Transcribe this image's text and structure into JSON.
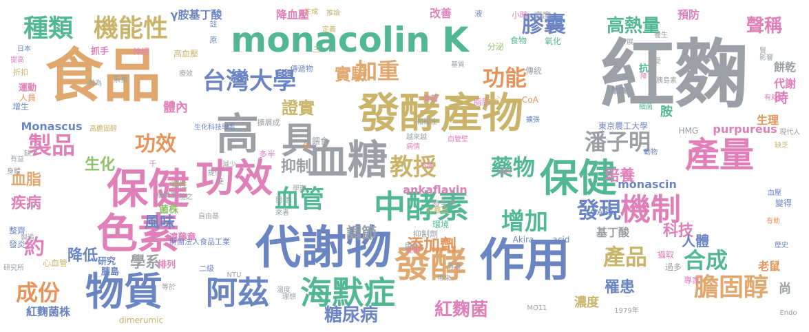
{
  "palette": [
    "#e0a86e",
    "#9aa0a6",
    "#6b84c2",
    "#e080b8",
    "#52b894",
    "#e7945a",
    "#c9b46a",
    "#8fc26a"
  ],
  "words": [
    {
      "text": "紅麴",
      "c": "#9aa0a6"
    },
    {
      "text": "食品",
      "c": "#e0a86e"
    },
    {
      "text": "monacolin K",
      "c": "#52b894"
    },
    {
      "text": "代謝物",
      "c": "#6b84c2"
    },
    {
      "text": "發酵產物",
      "c": "#c9b46a"
    },
    {
      "text": "保健",
      "c": "#e080b8"
    },
    {
      "text": "功效",
      "c": "#e080b8"
    },
    {
      "text": "高",
      "c": "#9aa0a6"
    },
    {
      "text": "具",
      "c": "#9aa0a6"
    },
    {
      "text": "血糖",
      "c": "#9aa0a6"
    },
    {
      "text": "作用",
      "c": "#6b84c2"
    },
    {
      "text": "色素",
      "c": "#e080b8"
    },
    {
      "text": "物質",
      "c": "#6b84c2"
    },
    {
      "text": "海默症",
      "c": "#52b894"
    },
    {
      "text": "阿茲",
      "c": "#6b84c2"
    },
    {
      "text": "發酵",
      "c": "#e0a86e"
    },
    {
      "text": "保健",
      "c": "#52b894"
    },
    {
      "text": "產量",
      "c": "#e080b8"
    },
    {
      "text": "中酵素",
      "c": "#52b894"
    },
    {
      "text": "機制",
      "c": "#e080b8"
    },
    {
      "text": "種類",
      "c": "#52b894"
    },
    {
      "text": "機能性",
      "c": "#c9b46a"
    },
    {
      "text": "台灣大學",
      "c": "#6b84c2"
    },
    {
      "text": "加重",
      "c": "#e0a86e"
    },
    {
      "text": "功能",
      "c": "#e7945a"
    },
    {
      "text": "膠囊",
      "c": "#6b84c2"
    },
    {
      "text": "高熱量",
      "c": "#52b894"
    },
    {
      "text": "聲稱",
      "c": "#e080b8"
    },
    {
      "text": "教授",
      "c": "#c9b46a"
    },
    {
      "text": "藥物",
      "c": "#52b894"
    },
    {
      "text": "潘子明",
      "c": "#9aa0a6"
    },
    {
      "text": "血管",
      "c": "#52b894"
    },
    {
      "text": "增加",
      "c": "#52b894"
    },
    {
      "text": "發現",
      "c": "#6b84c2"
    },
    {
      "text": "製品",
      "c": "#e080b8"
    },
    {
      "text": "功效",
      "c": "#e7945a"
    },
    {
      "text": "膽固醇",
      "c": "#e0a86e"
    },
    {
      "text": "產品",
      "c": "#c9b46a"
    },
    {
      "text": "合成",
      "c": "#52b894"
    },
    {
      "text": "成份",
      "c": "#e7945a"
    },
    {
      "text": "約",
      "c": "#e080b8"
    },
    {
      "text": "糖尿病",
      "c": "#6b84c2"
    },
    {
      "text": "紅麴菌",
      "c": "#e080b8"
    },
    {
      "text": "證實",
      "c": "#c9b46a"
    },
    {
      "text": "實驗",
      "c": "#e0a86e"
    },
    {
      "text": "培養",
      "c": "#e080b8"
    },
    {
      "text": "添加劑",
      "c": "#e7945a"
    },
    {
      "text": "調節",
      "c": "#9aa0a6"
    },
    {
      "text": "抑制",
      "c": "#9aa0a6"
    },
    {
      "text": "生化",
      "c": "#8fc26a"
    },
    {
      "text": "血脂",
      "c": "#e0a86e"
    },
    {
      "text": "疾病",
      "c": "#e080b8"
    },
    {
      "text": "風味",
      "c": "#6b84c2"
    },
    {
      "text": "降低",
      "c": "#6b84c2"
    },
    {
      "text": "學系",
      "c": "#9aa0a6"
    },
    {
      "text": "科技",
      "c": "#e080b8"
    },
    {
      "text": "人體",
      "c": "#6b84c2"
    },
    {
      "text": "罹患",
      "c": "#6b84c2"
    },
    {
      "text": "濃度",
      "c": "#c9b46a"
    },
    {
      "text": "monascin",
      "c": "#6b84c2"
    },
    {
      "text": "ankaflavin",
      "c": "#e080b8"
    },
    {
      "text": "purpureus",
      "c": "#e080b8"
    },
    {
      "text": "Monascus",
      "c": "#6b84c2"
    },
    {
      "text": "γ胺基丁酸",
      "c": "#6b84c2"
    },
    {
      "text": "降血壓",
      "c": "#e080b8"
    },
    {
      "text": "改善",
      "c": "#e080b8"
    },
    {
      "text": "預防",
      "c": "#e080b8"
    },
    {
      "text": "時",
      "c": "#e080b8"
    },
    {
      "text": "代謝",
      "c": "#e080b8"
    },
    {
      "text": "生理",
      "c": "#e7945a"
    },
    {
      "text": "餅乾",
      "c": "#9aa0a6"
    },
    {
      "text": "抗",
      "c": "#52b894"
    },
    {
      "text": "胺",
      "c": "#52b894"
    },
    {
      "text": "體內",
      "c": "#e080b8"
    },
    {
      "text": "基丁酸",
      "c": "#9aa0a6"
    },
    {
      "text": "菌株",
      "c": "#8fc26a"
    },
    {
      "text": "尚",
      "c": "#9aa0a6"
    },
    {
      "text": "老鼠",
      "c": "#e7945a"
    },
    {
      "text": "紅麴菌株",
      "c": "#6b84c2"
    },
    {
      "text": "東京農工大學",
      "c": "#6b84c2"
    },
    {
      "text": "GABA",
      "c": "#6b84c2"
    },
    {
      "text": "Akira",
      "c": "#6b84c2"
    },
    {
      "text": "acid",
      "c": "#6b84c2"
    },
    {
      "text": "HMG",
      "c": "#9aa0a6"
    },
    {
      "text": "CoA",
      "c": "#e7945a"
    },
    {
      "text": "dimerumic",
      "c": "#c9b46a"
    },
    {
      "text": "Endo",
      "c": "#9aa0a6"
    },
    {
      "text": "1979年",
      "c": "#9aa0a6"
    },
    {
      "text": "研究",
      "c": "#6b84c2"
    },
    {
      "text": "胰島",
      "c": "#6b84c2"
    },
    {
      "text": "排列",
      "c": "#e080b8"
    },
    {
      "text": "遠藤章",
      "c": "#e080b8"
    },
    {
      "text": "自由基",
      "c": "#9aa0a6"
    },
    {
      "text": "心血管",
      "c": "#c9b46a"
    },
    {
      "text": "弾性",
      "c": "#8fc26a"
    },
    {
      "text": "傳統",
      "c": "#9aa0a6"
    },
    {
      "text": "日本",
      "c": "#6b84c2"
    },
    {
      "text": "抓手",
      "c": "#e080b8"
    },
    {
      "text": "神經",
      "c": "#e080b8"
    },
    {
      "text": "高血壓",
      "c": "#c9b46a"
    },
    {
      "text": "運動",
      "c": "#e080b8"
    },
    {
      "text": "人員",
      "c": "#e7945a"
    },
    {
      "text": "增生",
      "c": "#6b84c2"
    },
    {
      "text": "整齊",
      "c": "#6b84c2"
    },
    {
      "text": "發炎",
      "c": "#6b84c2"
    },
    {
      "text": "缺少",
      "c": "#9aa0a6"
    },
    {
      "text": "多半",
      "c": "#e080b8"
    },
    {
      "text": "餵食",
      "c": "#9aa0a6"
    },
    {
      "text": "脂肪",
      "c": "#e080b8"
    },
    {
      "text": "知心",
      "c": "#c9b46a"
    },
    {
      "text": "食物",
      "c": "#52b894"
    },
    {
      "text": "氧化",
      "c": "#52b894"
    },
    {
      "text": "分泌",
      "c": "#8fc26a"
    },
    {
      "text": "高度",
      "c": "#9aa0a6"
    },
    {
      "text": "小時",
      "c": "#e080b8"
    },
    {
      "text": "攝取",
      "c": "#e080b8"
    },
    {
      "text": "歷史",
      "c": "#6b84c2"
    },
    {
      "text": "有助",
      "c": "#e7945a"
    },
    {
      "text": "血壓",
      "c": "#6b84c2"
    },
    {
      "text": "動物",
      "c": "#6b84c2"
    },
    {
      "text": "過多",
      "c": "#9aa0a6"
    },
    {
      "text": "專家",
      "c": "#e080b8"
    },
    {
      "text": "變得",
      "c": "#6b84c2"
    },
    {
      "text": "現代人",
      "c": "#9aa0a6"
    },
    {
      "text": "缺乏",
      "c": "#c9b46a"
    },
    {
      "text": "擴張",
      "c": "#6b84c2"
    },
    {
      "text": "消除",
      "c": "#e080b8"
    },
    {
      "text": "血管壁",
      "c": "#e080b8"
    },
    {
      "text": "下降",
      "c": "#e080b8"
    },
    {
      "text": "病情",
      "c": "#e080b8"
    },
    {
      "text": "越來越",
      "c": "#9aa0a6"
    },
    {
      "text": "相關性",
      "c": "#9aa0a6"
    },
    {
      "text": "發生率",
      "c": "#9aa0a6"
    },
    {
      "text": "分離出",
      "c": "#c9b46a"
    },
    {
      "text": "環境",
      "c": "#52b894"
    },
    {
      "text": "抑制劑",
      "c": "#9aa0a6"
    },
    {
      "text": "顯示",
      "c": "#9aa0a6"
    },
    {
      "text": "促使",
      "c": "#e080b8"
    },
    {
      "text": "眞菌",
      "c": "#e080b8"
    },
    {
      "text": "擴展成",
      "c": "#9aa0a6"
    },
    {
      "text": "素量",
      "c": "#9aa0a6"
    },
    {
      "text": "物像",
      "c": "#6b84c2"
    },
    {
      "text": "降",
      "c": "#e080b8"
    },
    {
      "text": "細菌",
      "c": "#52b894"
    },
    {
      "text": "有助於",
      "c": "#e080b8"
    },
    {
      "text": "高膽固醇",
      "c": "#c9b46a"
    },
    {
      "text": "傳遞物",
      "c": "#6b84c2"
    },
    {
      "text": "生化科技學系",
      "c": "#6b84c2"
    },
    {
      "text": "財團法人食品工業",
      "c": "#6b84c2"
    },
    {
      "text": "二級",
      "c": "#6b84c2"
    },
    {
      "text": "年",
      "c": "#e7945a"
    },
    {
      "text": "千",
      "c": "#e080b8"
    },
    {
      "text": "註",
      "c": "#6b84c2"
    },
    {
      "text": "原",
      "c": "#6b84c2"
    },
    {
      "text": "液",
      "c": "#6b84c2"
    },
    {
      "text": "三",
      "c": "#c9b46a"
    },
    {
      "text": "生成",
      "c": "#c9b46a"
    },
    {
      "text": "推論",
      "c": "#c9b46a"
    },
    {
      "text": "定義",
      "c": "#c9b46a"
    },
    {
      "text": "折扣",
      "c": "#c9b46a"
    },
    {
      "text": "提高",
      "c": "#e080b8"
    },
    {
      "text": "有益",
      "c": "#9aa0a6"
    },
    {
      "text": "身體",
      "c": "#9aa0a6"
    },
    {
      "text": "pH",
      "c": "#9aa0a6"
    },
    {
      "text": "研究所",
      "c": "#9aa0a6"
    },
    {
      "text": "製造",
      "c": "#9aa0a6"
    },
    {
      "text": "減少",
      "c": "#9aa0a6"
    },
    {
      "text": "NTU",
      "c": "#9aa0a6"
    },
    {
      "text": "MO11",
      "c": "#9aa0a6"
    },
    {
      "text": "胰島素",
      "c": "#9aa0a6"
    },
    {
      "text": "影響",
      "c": "#9aa0a6"
    },
    {
      "text": "養生",
      "c": "#9aa0a6"
    },
    {
      "text": "發展",
      "c": "#9aa0a6"
    },
    {
      "text": "隨之",
      "c": "#9aa0a6"
    },
    {
      "text": "開發",
      "c": "#9aa0a6"
    },
    {
      "text": "理想",
      "c": "#9aa0a6"
    },
    {
      "text": "溫度",
      "c": "#9aa0a6"
    },
    {
      "text": "等於",
      "c": "#9aa0a6"
    },
    {
      "text": "基質",
      "c": "#9aa0a6"
    },
    {
      "text": "黃色素",
      "c": "#9aa0a6"
    },
    {
      "text": "產業",
      "c": "#9aa0a6"
    },
    {
      "text": "來者",
      "c": "#9aa0a6"
    },
    {
      "text": "療效",
      "c": "#9aa0a6"
    },
    {
      "text": "微為",
      "c": "#9aa0a6"
    },
    {
      "text": "有害",
      "c": "#9aa0a6"
    },
    {
      "text": "帶來",
      "c": "#9aa0a6"
    },
    {
      "text": "提供",
      "c": "#9aa0a6"
    },
    {
      "text": "橋樂素",
      "c": "#9aa0a6"
    },
    {
      "text": "學理",
      "c": "#9aa0a6"
    },
    {
      "text": "使",
      "c": "#9aa0a6"
    },
    {
      "text": "受",
      "c": "#9aa0a6"
    },
    {
      "text": "賢",
      "c": "#9aa0a6"
    },
    {
      "text": "肝",
      "c": "#9aa0a6"
    },
    {
      "text": "發",
      "c": "#9aa0a6"
    },
    {
      "text": "道",
      "c": "#9aa0a6"
    },
    {
      "text": "轉化",
      "c": "#9aa0a6"
    },
    {
      "text": "適合",
      "c": "#9aa0a6"
    }
  ]
}
